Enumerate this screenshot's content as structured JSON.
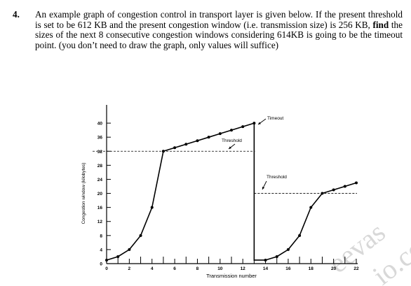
{
  "question": {
    "number": "4.",
    "text_before_bold": "An example graph of congestion control in transport layer is given below. If the present threshold is set to be 612 KB and the present congestion window (i.e. transmission size) is 256 KB, ",
    "bold_word": "find",
    "text_after_bold": " the sizes of the next 8 consecutive congestion windows considering 614KB is going to be the timeout point. (you don’t need to draw the graph, only values will suffice)"
  },
  "chart_data": {
    "type": "line",
    "xlabel": "Transmission number",
    "ylabel": "Congestion window (kilobytes)",
    "xlim": [
      0,
      22
    ],
    "ylim": [
      0,
      44
    ],
    "x_ticks": [
      "0",
      "2",
      "4",
      "6",
      "8",
      "10",
      "12",
      "14",
      "16",
      "18",
      "20",
      "22"
    ],
    "y_ticks": [
      "0",
      "4",
      "8",
      "12",
      "16",
      "20",
      "24",
      "28",
      "32",
      "36",
      "40"
    ],
    "x_minor_ticks": [
      1,
      3,
      5,
      7,
      9,
      11,
      13,
      15,
      17,
      19,
      21
    ],
    "series": [
      {
        "name": "",
        "x": [
          0,
          1,
          2,
          3,
          4,
          5,
          6,
          7,
          8,
          9,
          10,
          11,
          12,
          13
        ],
        "y": [
          1,
          2,
          4,
          8,
          16,
          32,
          33,
          34,
          35,
          36,
          37,
          38,
          39,
          40
        ]
      },
      {
        "name": "",
        "x": [
          14,
          15,
          16,
          17,
          18,
          19,
          20,
          21,
          22
        ],
        "y": [
          1,
          2,
          4,
          8,
          16,
          20,
          21,
          22,
          23
        ]
      }
    ],
    "thresholds": [
      {
        "y": 32,
        "x_start": 0,
        "x_end": 13
      },
      {
        "y": 20,
        "x_start": 13,
        "x_end": 22
      }
    ],
    "timeout_drop": {
      "x": 13,
      "from": 40,
      "to": 1
    },
    "annotations": {
      "timeout": "Timeout",
      "threshold_1": "Threshold",
      "threshold_2": "Threshold"
    },
    "watermark": "eevas io.co"
  }
}
